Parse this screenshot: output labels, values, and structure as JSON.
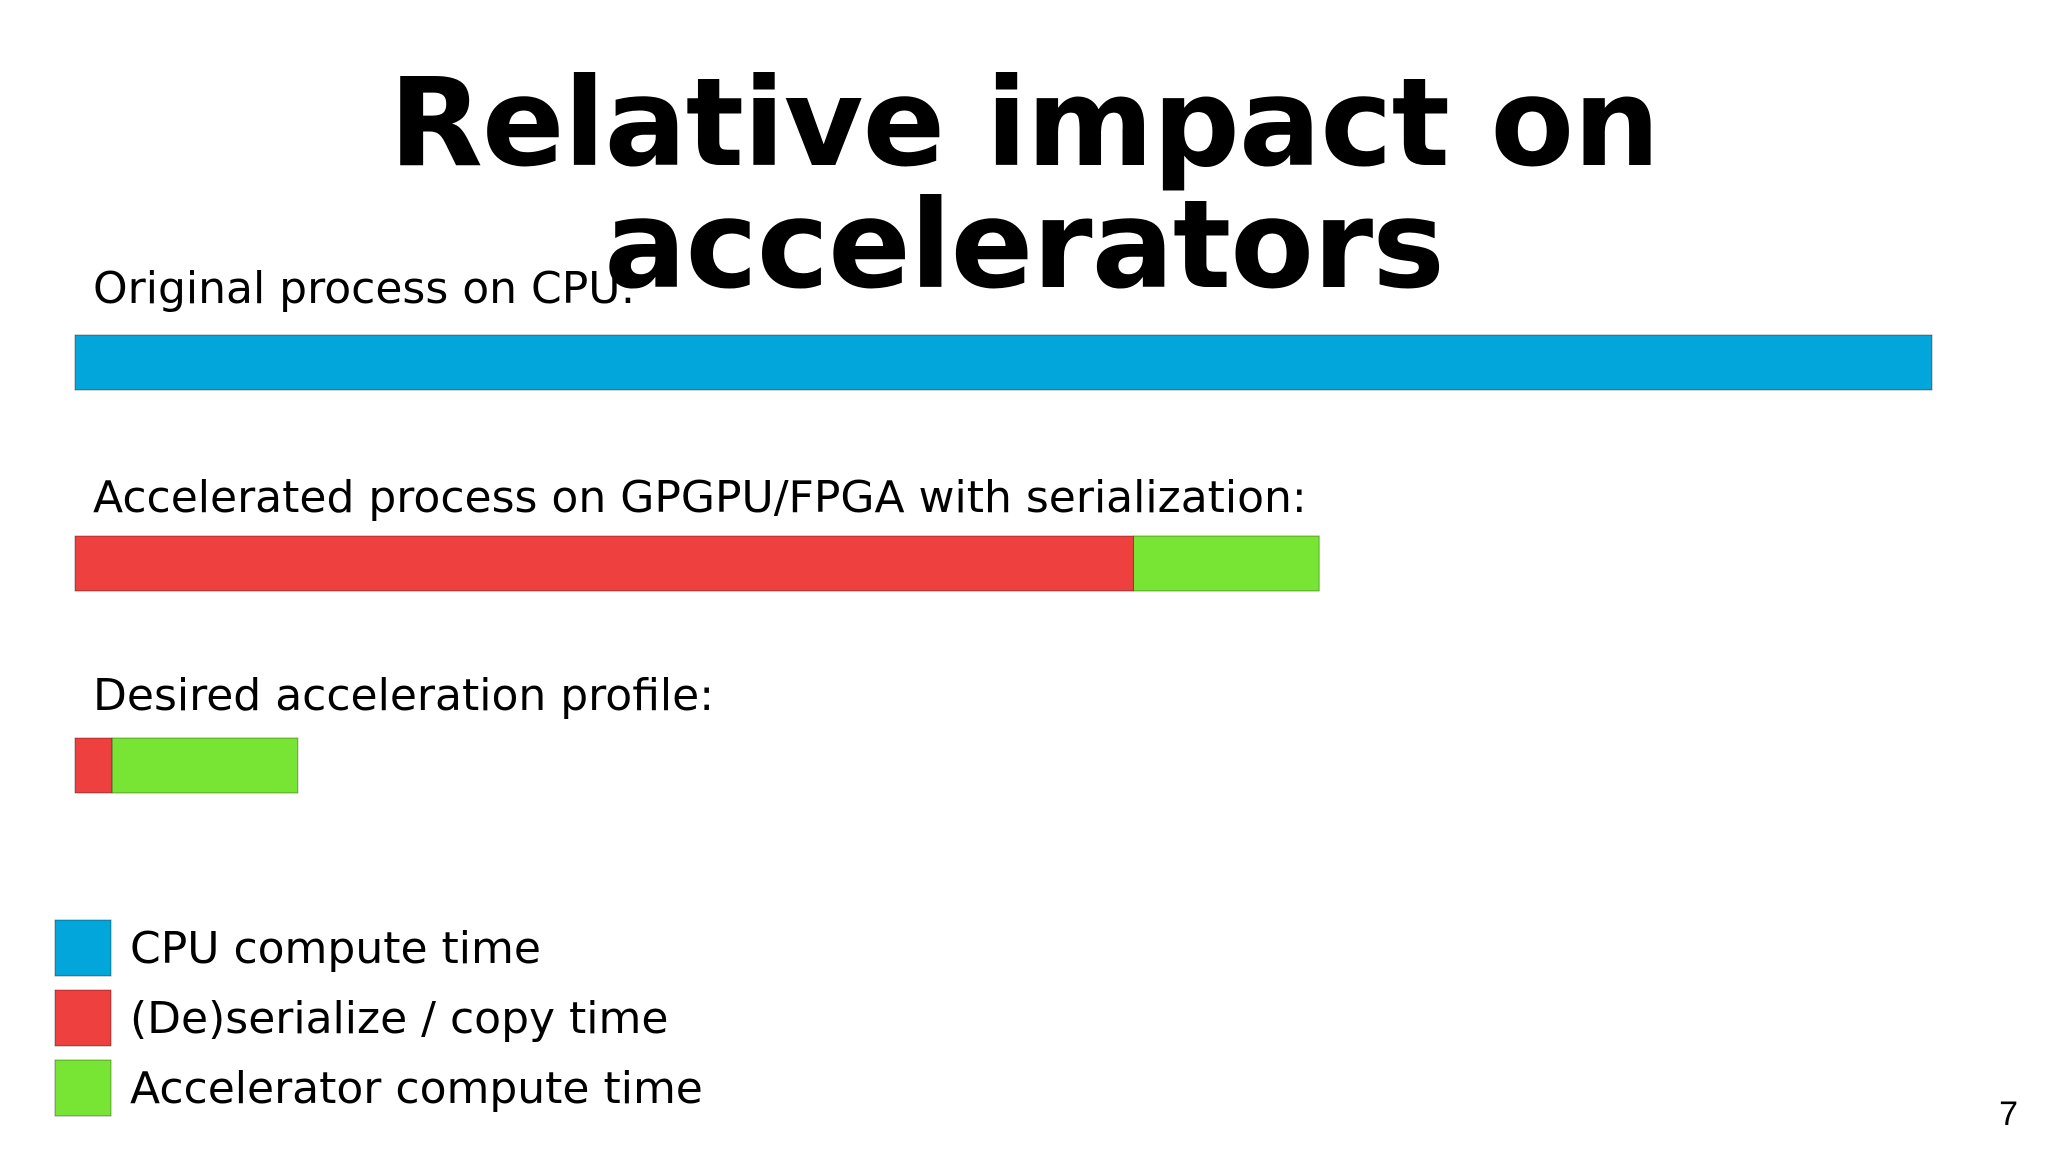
{
  "slide": {
    "page_number": "7"
  },
  "colors": {
    "cpu": "#02A6DB",
    "serialize": "#EF4040",
    "accelerator": "#78E534"
  },
  "chart_data": {
    "type": "bar",
    "title": "Relative impact on accelerators",
    "xlabel": "",
    "ylabel": "",
    "orientation": "horizontal",
    "stacked": true,
    "categories": [
      "Original process on CPU:",
      "Accelerated process on GPGPU/FPGA with serialization:",
      "Desired acceleration profile:"
    ],
    "series": [
      {
        "name": "CPU compute time",
        "color": "#02A6DB",
        "values": [
          100,
          0,
          0
        ]
      },
      {
        "name": "(De)serialize / copy time",
        "color": "#EF4040",
        "values": [
          0,
          57,
          2
        ]
      },
      {
        "name": "Accelerator compute time",
        "color": "#78E534",
        "values": [
          0,
          10,
          10
        ]
      }
    ],
    "xlim": [
      0,
      100
    ],
    "axes_visible": false,
    "grid": false,
    "legend_position": "bottom-left"
  }
}
